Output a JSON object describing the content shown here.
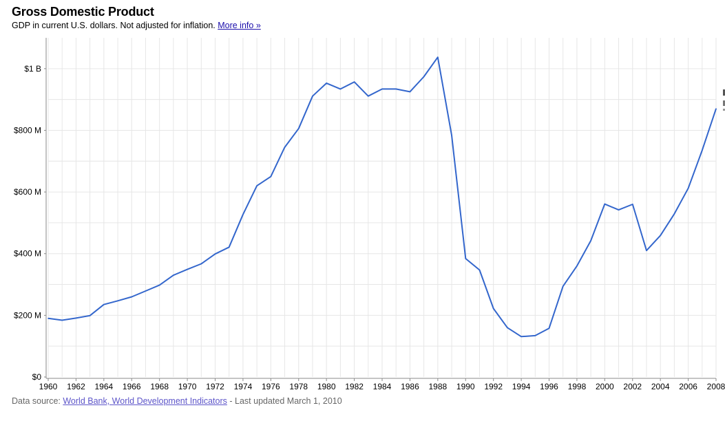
{
  "header": {
    "title": "Gross Domestic Product",
    "subtitle_text": "GDP in current U.S. dollars. Not adjusted for inflation.",
    "more_info_link": "More info »"
  },
  "footer": {
    "source_prefix": "Data source:",
    "source_link": "World Bank, World Development Indicators",
    "updated_text": "- Last updated March 1, 2010"
  },
  "colors": {
    "line": "#3366cc",
    "grid": "#e6e6e6",
    "axis": "#888888"
  },
  "chart_data": {
    "type": "line",
    "title": "Gross Domestic Product",
    "subtitle": "GDP in current U.S. dollars. Not adjusted for inflation.",
    "xlim": [
      1960,
      2008
    ],
    "ylim": [
      0,
      1100000000
    ],
    "grid": true,
    "yticks": [
      {
        "value": 0,
        "label": "$0"
      },
      {
        "value": 200000000,
        "label": "$200 M"
      },
      {
        "value": 400000000,
        "label": "$400 M"
      },
      {
        "value": 600000000,
        "label": "$600 M"
      },
      {
        "value": 800000000,
        "label": "$800 M"
      },
      {
        "value": 1000000000,
        "label": "$1 B"
      }
    ],
    "xticks": [
      1960,
      1962,
      1964,
      1966,
      1968,
      1970,
      1972,
      1974,
      1976,
      1978,
      1980,
      1982,
      1984,
      1986,
      1988,
      1990,
      1992,
      1994,
      1996,
      1998,
      2000,
      2002,
      2004,
      2006,
      2008
    ],
    "series": [
      {
        "x": [
          1960,
          1961,
          1962,
          1963,
          1964,
          1965,
          1966,
          1967,
          1968,
          1969,
          1970,
          1971,
          1972,
          1973,
          1974,
          1975,
          1976,
          1977,
          1978,
          1979,
          1980,
          1981,
          1982,
          1983,
          1984,
          1985,
          1986,
          1987,
          1988,
          1989,
          1990,
          1991,
          1992,
          1993,
          1994,
          1995,
          1996,
          1997,
          1998,
          1999,
          2000,
          2001,
          2002,
          2003,
          2004,
          2005,
          2006,
          2007,
          2008
        ],
        "values": [
          190000000,
          184000000,
          191000000,
          199000000,
          235000000,
          247000000,
          260000000,
          279000000,
          298000000,
          330000000,
          349000000,
          367000000,
          399000000,
          421000000,
          527000000,
          620000000,
          650000000,
          745000000,
          806000000,
          911000000,
          953000000,
          934000000,
          957000000,
          911000000,
          934000000,
          934000000,
          925000000,
          974000000,
          1037000000,
          784000000,
          384000000,
          347000000,
          222000000,
          160000000,
          131000000,
          134000000,
          158000000,
          294000000,
          360000000,
          442000000,
          561000000,
          542000000,
          560000000,
          410000000,
          459000000,
          529000000,
          612000000,
          735000000,
          870000000
        ]
      }
    ]
  }
}
